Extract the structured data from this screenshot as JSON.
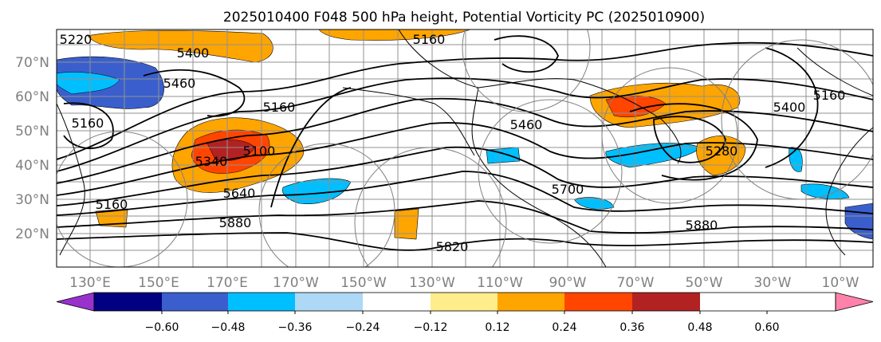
{
  "title": "2025010400 F048 500 hPa height, Potential Vorticity PC (2025010900)",
  "map": {
    "lat_labels": [
      "70°N",
      "60°N",
      "50°N",
      "40°N",
      "30°N",
      "20°N"
    ],
    "lon_labels": [
      "130°E",
      "150°E",
      "170°E",
      "170°W",
      "150°W",
      "130°W",
      "110°W",
      "90°W",
      "70°W",
      "50°W",
      "30°W",
      "10°W"
    ],
    "contour_labels": [
      "5160",
      "5400",
      "5460",
      "5160",
      "5160",
      "5100",
      "5340",
      "5640",
      "5880",
      "5820",
      "5460",
      "5700",
      "5880",
      "5400",
      "5160",
      "5280",
      "5220",
      "5160"
    ]
  },
  "colorbar": {
    "ticks": [
      "−0.60",
      "−0.48",
      "−0.36",
      "−0.24",
      "−0.12",
      "0.12",
      "0.24",
      "0.36",
      "0.48",
      "0.60"
    ],
    "colors": [
      "#9932cc",
      "#000080",
      "#3a5fcd",
      "#00bfff",
      "#add8f6",
      "#ffffff",
      "#ffec8b",
      "#ffa500",
      "#ff4500",
      "#b22222",
      "#ff82ab"
    ]
  },
  "colors": {
    "positive": "#ffa500",
    "strong_positive": "#ff4500",
    "negative": "#00bfff",
    "strong_negative": "#3a5fcd"
  }
}
